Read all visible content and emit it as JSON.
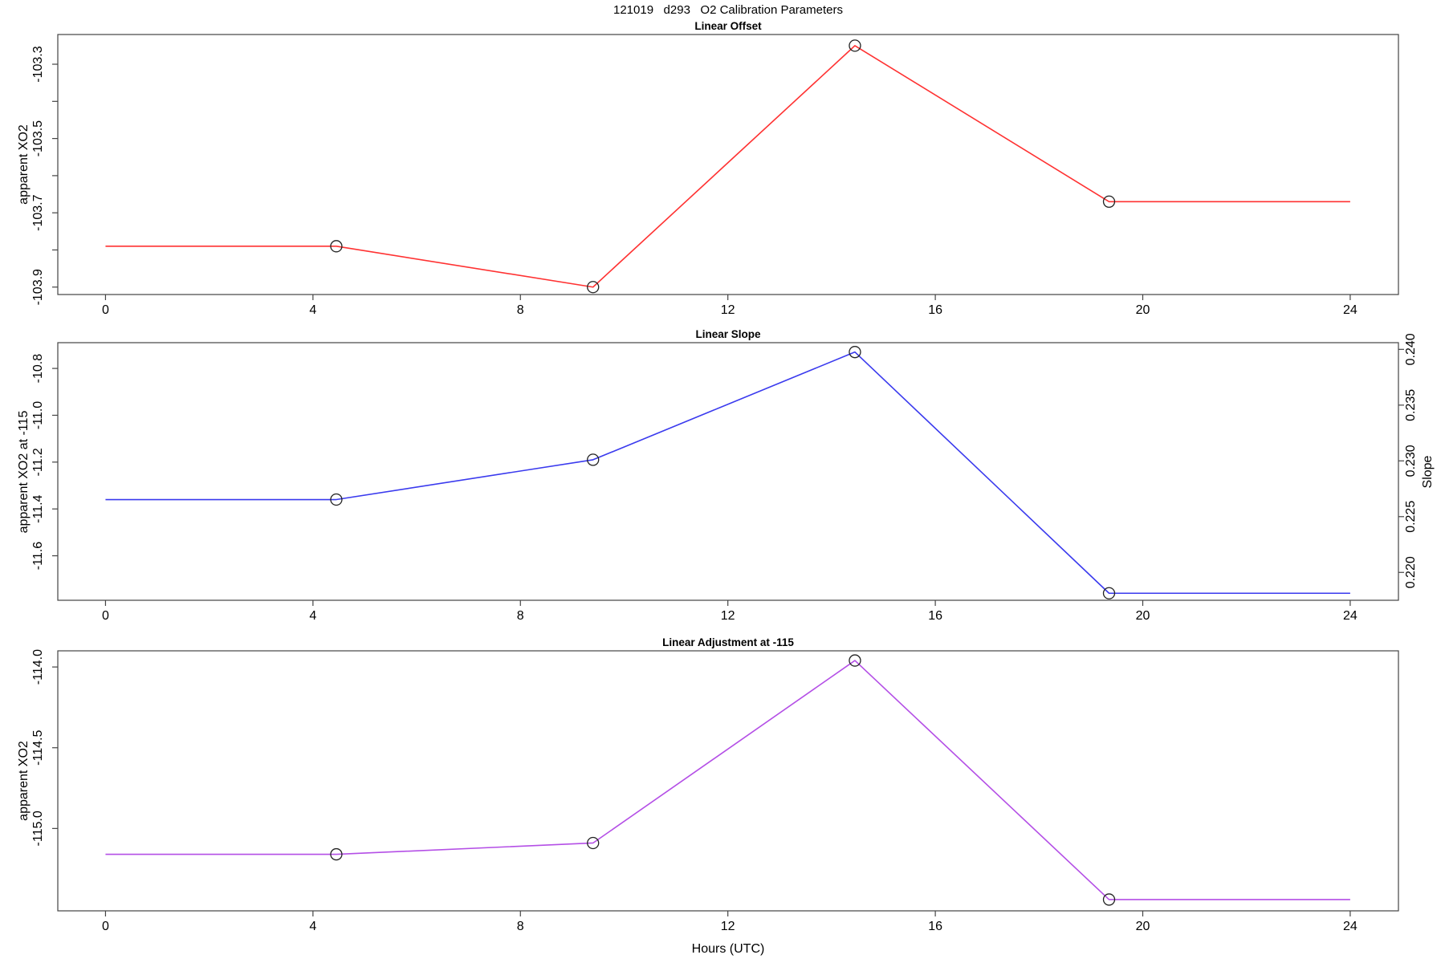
{
  "page_title": "121019   d293   O2 Calibration Parameters",
  "xlabel": "Hours (UTC)",
  "chart_data": [
    {
      "type": "line",
      "title": "Linear Offset",
      "ylabel": "apparent XO2",
      "line_color": "#FF3232",
      "marker": "open-circle",
      "x": [
        0,
        4.45,
        9.4,
        14.45,
        19.35,
        24
      ],
      "y": [
        -103.79,
        -103.79,
        -103.9,
        -103.25,
        -103.67,
        -103.67
      ],
      "marker_points": [
        1,
        2,
        3,
        4
      ],
      "xlim": [
        -0.92,
        24.93
      ],
      "x_ticks": [
        0,
        4,
        8,
        12,
        16,
        20,
        24
      ],
      "x_tick_labels": [
        "0",
        "4",
        "8",
        "12",
        "16",
        "20",
        "24"
      ],
      "ylim": [
        -103.92,
        -103.22
      ],
      "y_ticks": [
        -103.3,
        -103.4,
        -103.5,
        -103.6,
        -103.7,
        -103.8,
        -103.9
      ],
      "y_tick_labels": [
        "-103.3",
        "",
        "-103.5",
        "",
        "-103.7",
        "",
        "-103.9"
      ],
      "grid": false
    },
    {
      "type": "line",
      "title": "Linear Slope",
      "ylabel": "apparent XO2 at -115",
      "y2label": "Slope",
      "line_color": "#3A3AEE",
      "marker": "open-circle",
      "x": [
        0,
        4.45,
        9.4,
        14.45,
        19.35,
        24
      ],
      "y": [
        -11.36,
        -11.36,
        -11.19,
        -10.73,
        -11.76,
        -11.76
      ],
      "slope_values": [
        0.2264,
        0.2264,
        0.2301,
        0.2396,
        0.2182,
        0.2182
      ],
      "marker_points": [
        1,
        2,
        3,
        4
      ],
      "xlim": [
        -0.92,
        24.93
      ],
      "x_ticks": [
        0,
        4,
        8,
        12,
        16,
        20,
        24
      ],
      "x_tick_labels": [
        "0",
        "4",
        "8",
        "12",
        "16",
        "20",
        "24"
      ],
      "ylim": [
        -11.79,
        -10.69
      ],
      "y_ticks": [
        -10.8,
        -11.0,
        -11.2,
        -11.4,
        -11.6
      ],
      "y_tick_labels": [
        "-10.8",
        "-11.0",
        "-11.2",
        "-11.4",
        "-11.6"
      ],
      "y2lim": [
        0.2175,
        0.2406
      ],
      "y2_ticks": [
        0.24,
        0.235,
        0.23,
        0.225,
        0.22
      ],
      "y2_tick_labels": [
        "0.240",
        "0.235",
        "0.230",
        "0.225",
        "0.220"
      ],
      "grid": false
    },
    {
      "type": "line",
      "title": "Linear Adjustment at -115",
      "ylabel": "apparent XO2",
      "line_color": "#B44FE6",
      "marker": "open-circle",
      "x": [
        0,
        4.45,
        9.4,
        14.45,
        19.35,
        24
      ],
      "y": [
        -115.16,
        -115.16,
        -115.09,
        -113.96,
        -115.44,
        -115.44
      ],
      "marker_points": [
        1,
        2,
        3,
        4
      ],
      "xlim": [
        -0.92,
        24.93
      ],
      "x_ticks": [
        0,
        4,
        8,
        12,
        16,
        20,
        24
      ],
      "x_tick_labels": [
        "0",
        "4",
        "8",
        "12",
        "16",
        "20",
        "24"
      ],
      "ylim": [
        -115.51,
        -113.9
      ],
      "y_ticks": [
        -114.0,
        -114.5,
        -115.0
      ],
      "y_tick_labels": [
        "-114.0",
        "-114.5",
        "-115.0"
      ],
      "grid": false
    }
  ]
}
